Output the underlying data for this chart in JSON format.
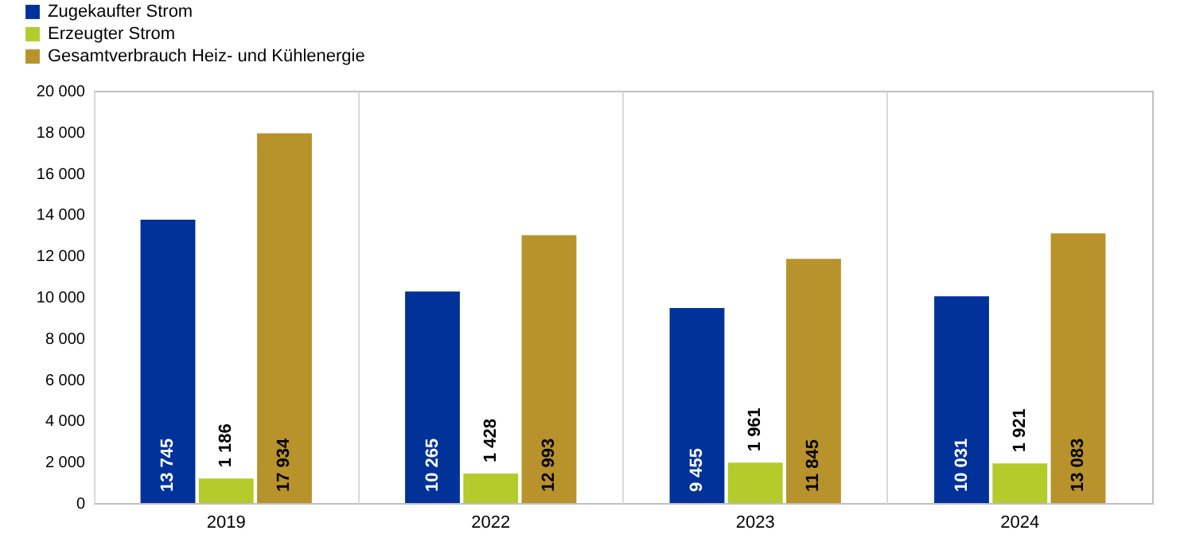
{
  "chart_data": {
    "type": "bar",
    "categories": [
      "2019",
      "2022",
      "2023",
      "2024"
    ],
    "series": [
      {
        "name": "Zugekaufter Strom",
        "color": "#003299",
        "values": [
          13745,
          10265,
          9455,
          10031
        ]
      },
      {
        "name": "Erzeugter Strom",
        "color": "#b3cb2b",
        "values": [
          1186,
          1428,
          1961,
          1921
        ]
      },
      {
        "name": "Gesamtverbrauch Heiz- und Kühlenergie",
        "color": "#b8922a",
        "values": [
          17934,
          12993,
          11845,
          13083
        ]
      }
    ],
    "ylim": [
      0,
      20000
    ],
    "yticks": [
      {
        "value": 0,
        "label": "0"
      },
      {
        "value": 2000,
        "label": "2 000"
      },
      {
        "value": 4000,
        "label": "4 000"
      },
      {
        "value": 6000,
        "label": "6 000"
      },
      {
        "value": 8000,
        "label": "8 000"
      },
      {
        "value": 10000,
        "label": "10 000"
      },
      {
        "value": 12000,
        "label": "12 000"
      },
      {
        "value": 14000,
        "label": "14 000"
      },
      {
        "value": 16000,
        "label": "16 000"
      },
      {
        "value": 18000,
        "label": "18 000"
      },
      {
        "value": 20000,
        "label": "20 000"
      }
    ],
    "grid": "x",
    "legend": "top left",
    "data_labels": true
  }
}
